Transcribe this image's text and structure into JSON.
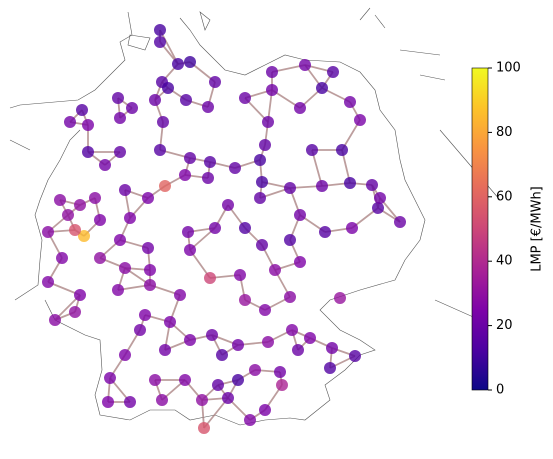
{
  "map_data": {
    "colorbar": {
      "label": "LMP [€/MWh]",
      "lim": [
        0,
        100
      ],
      "ticks": [
        0,
        20,
        40,
        60,
        80,
        100
      ]
    },
    "nodes": {
      "lmp": [
        12,
        14,
        10,
        12,
        15,
        12,
        18,
        18,
        15,
        20,
        15,
        20,
        20,
        18,
        22,
        24,
        22,
        14,
        18,
        15,
        18,
        15,
        18,
        12,
        12,
        20,
        22,
        15,
        12,
        22,
        20,
        20,
        18,
        22,
        22,
        24,
        12,
        15,
        12,
        18,
        15,
        20,
        18,
        18,
        22,
        15,
        14,
        18,
        14,
        20,
        24,
        22,
        20,
        25,
        60,
        24,
        20,
        22,
        30,
        28,
        28,
        30,
        85,
        55,
        28,
        25,
        25,
        22,
        25,
        22,
        22,
        24,
        25,
        28,
        30,
        26,
        26,
        25,
        28,
        30,
        26,
        28,
        26,
        50,
        26,
        28,
        25,
        32,
        28,
        32,
        26,
        25,
        24,
        22,
        22,
        24,
        20,
        22,
        28,
        26,
        20,
        22,
        15,
        15,
        28,
        22,
        12,
        18,
        26,
        28,
        25,
        24,
        25,
        22,
        28,
        30,
        20,
        24,
        26,
        55,
        14,
        22,
        25,
        38
      ]
    }
  }
}
